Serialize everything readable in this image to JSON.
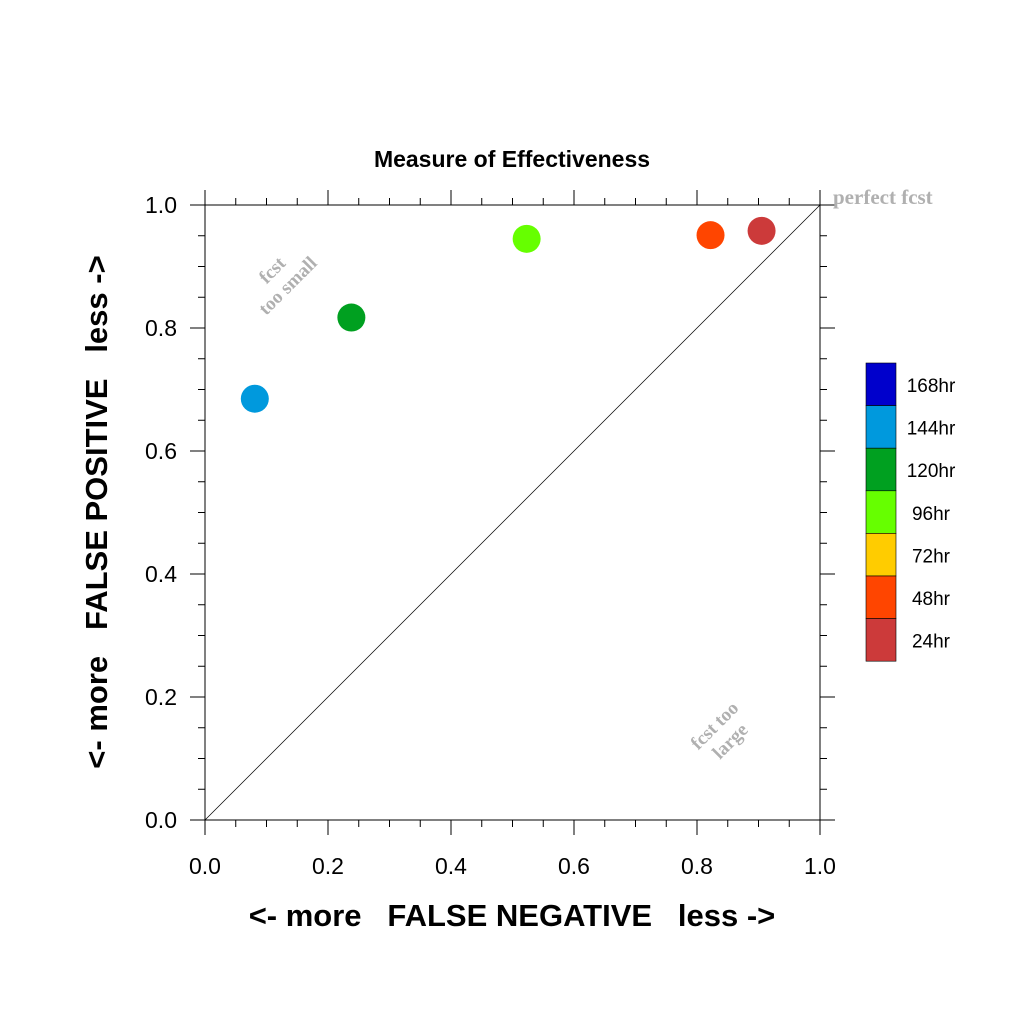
{
  "chart_data": {
    "type": "scatter",
    "title": "Measure of Effectiveness",
    "xlabel": "<- more   FALSE NEGATIVE   less ->",
    "ylabel": "<- more   FALSE POSITIVE   less ->",
    "xlim": [
      0.0,
      1.0
    ],
    "ylim": [
      0.0,
      1.0
    ],
    "x_ticks": [
      "0.0",
      "0.2",
      "0.4",
      "0.6",
      "0.8",
      "1.0"
    ],
    "y_ticks": [
      "0.0",
      "0.2",
      "0.4",
      "0.6",
      "0.8",
      "1.0"
    ],
    "grid": false,
    "diagonal_line": true,
    "annotations": {
      "perfect": "perfect fcst",
      "too_small_line1": "fcst",
      "too_small_line2": "too small",
      "too_large_line1": "fcst too",
      "too_large_line2": "large"
    },
    "series": [
      {
        "name": "24hr",
        "color": "#cc3a3a",
        "x": 0.905,
        "y": 0.958
      },
      {
        "name": "48hr",
        "color": "#ff4500",
        "x": 0.822,
        "y": 0.951
      },
      {
        "name": "96hr",
        "color": "#66ff00",
        "x": 0.523,
        "y": 0.945
      },
      {
        "name": "120hr",
        "color": "#00a020",
        "x": 0.238,
        "y": 0.817
      },
      {
        "name": "144hr",
        "color": "#0099dd",
        "x": 0.081,
        "y": 0.685
      }
    ],
    "legend": {
      "placement": "right",
      "entries": [
        {
          "label": "168hr",
          "color": "#0000cc"
        },
        {
          "label": "144hr",
          "color": "#0099dd"
        },
        {
          "label": "120hr",
          "color": "#00a020"
        },
        {
          "label": "96hr",
          "color": "#66ff00"
        },
        {
          "label": "72hr",
          "color": "#ffcc00"
        },
        {
          "label": "48hr",
          "color": "#ff4500"
        },
        {
          "label": "24hr",
          "color": "#cc3a3a"
        }
      ]
    }
  }
}
